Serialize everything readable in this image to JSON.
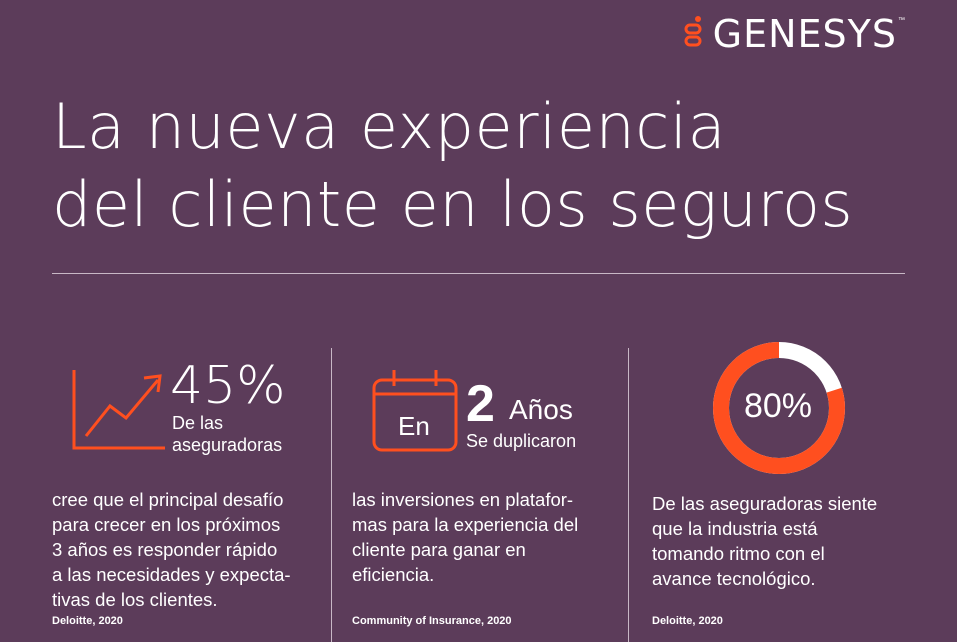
{
  "brand": {
    "name": "GENESYS",
    "tm": "™",
    "accent": "#ff4f1f",
    "background": "#5c3c5a"
  },
  "title": {
    "line1": "La nueva experiencia",
    "line2": "del cliente en los seguros"
  },
  "stats": [
    {
      "icon": "trend-up-chart-icon",
      "value": "45%",
      "subtitle_line1": "De las",
      "subtitle_line2": "aseguradoras",
      "text_lines": [
        "cree que el principal desafío",
        "para crecer en los próximos",
        "3 años es responder rápido",
        "a las necesidades y expecta-",
        "tivas de los clientes."
      ],
      "source": "Deloitte, 2020"
    },
    {
      "icon": "calendar-icon",
      "icon_label": "En",
      "value": "2",
      "unit": "Años",
      "subtitle": "Se duplicaron",
      "text_lines": [
        "las inversiones en platafor-",
        "mas para la experiencia del",
        "cliente para ganar en",
        "eficiencia."
      ],
      "source": "Community of Insurance, 2020"
    },
    {
      "icon": "donut-chart-icon",
      "value": "80%",
      "percent": 80,
      "text_lines": [
        "De las aseguradoras siente",
        "que la industria está",
        "tomando ritmo con el",
        "avance tecnológico."
      ],
      "source": "Deloitte, 2020"
    }
  ]
}
